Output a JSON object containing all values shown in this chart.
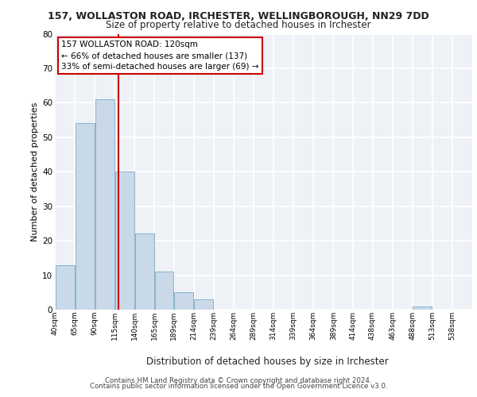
{
  "title1": "157, WOLLASTON ROAD, IRCHESTER, WELLINGBOROUGH, NN29 7DD",
  "title2": "Size of property relative to detached houses in Irchester",
  "xlabel": "Distribution of detached houses by size in Irchester",
  "ylabel": "Number of detached properties",
  "bar_color": "#c9d9e8",
  "bar_edge_color": "#7aaac8",
  "bin_labels": [
    "40sqm",
    "65sqm",
    "90sqm",
    "115sqm",
    "140sqm",
    "165sqm",
    "189sqm",
    "214sqm",
    "239sqm",
    "264sqm",
    "289sqm",
    "314sqm",
    "339sqm",
    "364sqm",
    "389sqm",
    "414sqm",
    "438sqm",
    "463sqm",
    "488sqm",
    "513sqm",
    "538sqm"
  ],
  "bin_edges": [
    40,
    65,
    90,
    115,
    140,
    165,
    189,
    214,
    239,
    264,
    289,
    314,
    339,
    364,
    389,
    414,
    438,
    463,
    488,
    513,
    538,
    563
  ],
  "bar_heights": [
    13,
    54,
    61,
    40,
    22,
    11,
    5,
    3,
    0,
    0,
    0,
    0,
    0,
    0,
    0,
    0,
    0,
    0,
    1,
    0,
    0
  ],
  "ylim": [
    0,
    80
  ],
  "yticks": [
    0,
    10,
    20,
    30,
    40,
    50,
    60,
    70,
    80
  ],
  "red_line_x": 120,
  "annotation_title": "157 WOLLASTON ROAD: 120sqm",
  "annotation_line1": "← 66% of detached houses are smaller (137)",
  "annotation_line2": "33% of semi-detached houses are larger (69) →",
  "footer1": "Contains HM Land Registry data © Crown copyright and database right 2024.",
  "footer2": "Contains public sector information licensed under the Open Government Licence v3.0.",
  "bg_color": "#eef2f7",
  "grid_color": "#ffffff",
  "annotation_box_color": "#ffffff",
  "annotation_box_edge": "#cc0000"
}
